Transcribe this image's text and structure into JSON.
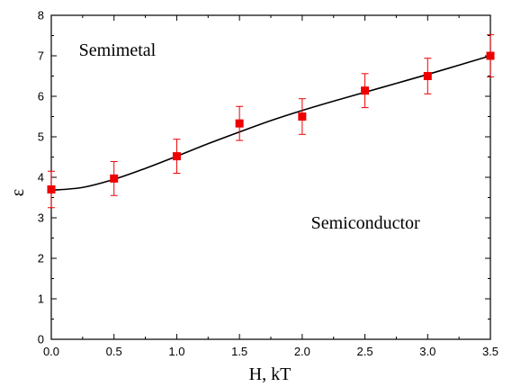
{
  "chart_data": {
    "type": "scatter",
    "title": "",
    "xlabel": "H, kT",
    "ylabel": "ε",
    "xlim": [
      0,
      3.5
    ],
    "ylim": [
      0,
      8
    ],
    "x_ticks": [
      0.0,
      0.5,
      1.0,
      1.5,
      2.0,
      2.5,
      3.0,
      3.5
    ],
    "x_tick_labels": [
      "0.0",
      "0.5",
      "1.0",
      "1.5",
      "2.0",
      "2.5",
      "3.0",
      "3.5"
    ],
    "y_ticks": [
      0,
      1,
      2,
      3,
      4,
      5,
      6,
      7,
      8
    ],
    "y_tick_labels": [
      "0",
      "1",
      "2",
      "3",
      "4",
      "5",
      "6",
      "7",
      "8"
    ],
    "grid": false,
    "series": [
      {
        "kind": "points-with-error-bars",
        "color": "#ee0000",
        "marker": "square",
        "x": [
          0.0,
          0.5,
          1.0,
          1.5,
          2.0,
          2.5,
          3.0,
          3.5
        ],
        "y": [
          3.7,
          3.97,
          4.52,
          5.33,
          5.5,
          6.14,
          6.5,
          7.0
        ],
        "err": [
          0.45,
          0.42,
          0.42,
          0.42,
          0.44,
          0.42,
          0.44,
          0.52
        ]
      },
      {
        "kind": "line",
        "color": "#000000",
        "x": [
          0.0,
          0.25,
          0.5,
          0.75,
          1.0,
          1.25,
          1.5,
          1.75,
          2.0,
          2.25,
          2.5,
          2.75,
          3.0,
          3.25,
          3.5
        ],
        "y": [
          3.68,
          3.75,
          3.95,
          4.22,
          4.52,
          4.83,
          5.12,
          5.4,
          5.65,
          5.88,
          6.1,
          6.32,
          6.54,
          6.77,
          7.0
        ]
      }
    ],
    "annotations": [
      {
        "text": "Semimetal",
        "x": 0.22,
        "y": 7.0
      },
      {
        "text": "Semiconductor",
        "x": 2.07,
        "y": 2.73
      }
    ]
  }
}
